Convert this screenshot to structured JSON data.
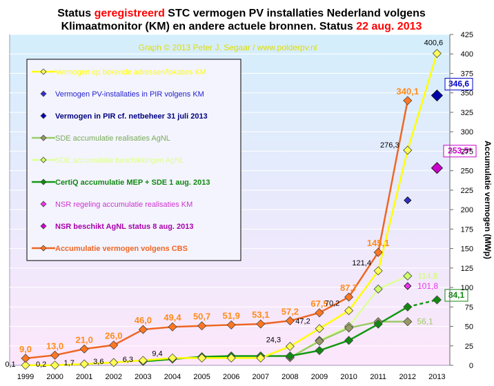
{
  "title": {
    "part1": "Status ",
    "part2": "geregistreerd",
    "part3": " STC vermogen PV installaties  Nederland volgens",
    "line2a": "Klimaatmonitor (KM) en andere actuele bronnen. Status ",
    "line2b": "22 aug. 2013"
  },
  "credit": "Graph  © 2013 Peter J. Segaar / www.polderpv.nl",
  "chart_data": {
    "type": "line",
    "ylabel": "Accumulatie vermogen (MWp)",
    "ylim": [
      0,
      425
    ],
    "yticks": [
      0,
      25,
      50,
      75,
      100,
      125,
      150,
      175,
      200,
      225,
      250,
      275,
      300,
      325,
      350,
      375,
      400,
      425
    ],
    "categories": [
      "1999",
      "2000",
      "2001",
      "2002",
      "2003",
      "2004",
      "2005",
      "2006",
      "2007",
      "2008",
      "2009",
      "2010",
      "2011",
      "2012",
      "2013"
    ],
    "series": [
      {
        "name": "Vermogen op bekende adressen/lokaties KM",
        "color": "#ffff00",
        "marker": "#ffff55",
        "values": [
          0.1,
          0.2,
          1.7,
          3.6,
          6.3,
          9.4,
          9.4,
          9.4,
          9.4,
          24.3,
          47.2,
          70.2,
          121.4,
          276.3,
          400.6
        ]
      },
      {
        "name": "Vermogen PV-installaties in PIR volgens KM",
        "color": "#2222cc",
        "marker": "#3030cc",
        "values": [
          null,
          null,
          null,
          null,
          null,
          null,
          null,
          null,
          null,
          null,
          null,
          null,
          null,
          212,
          null
        ]
      },
      {
        "name": "Vermogen in PIR cf. netbeheer 31 juli 2013",
        "color": "#000080",
        "marker": "#0000aa",
        "values": [
          null,
          null,
          null,
          null,
          null,
          null,
          null,
          null,
          null,
          null,
          null,
          null,
          null,
          null,
          346.6
        ]
      },
      {
        "name": "SDE accumulatie realisaties AgNL",
        "color": "#99cc66",
        "marker": "#999966",
        "values": [
          null,
          null,
          null,
          null,
          null,
          null,
          null,
          null,
          null,
          10,
          31,
          48,
          56,
          56.1,
          null
        ]
      },
      {
        "name": "SDE accumulatie beschikkingen AgNL",
        "color": "#ddff99",
        "marker": "#ccff66",
        "values": [
          null,
          null,
          null,
          null,
          null,
          null,
          null,
          null,
          null,
          10,
          32,
          50,
          98,
          114.8,
          null
        ]
      },
      {
        "name": "CertiQ accumulatie MEP + SDE 1 aug. 2013",
        "color": "#119911",
        "marker": "#118811",
        "values": [
          null,
          null,
          null,
          null,
          5,
          8,
          11,
          12,
          12,
          12,
          19,
          32,
          53,
          75,
          84.1
        ]
      },
      {
        "name": "NSR regeling accumulatie realisaties KM",
        "color": "#cc33cc",
        "marker": "#ee33ee",
        "values": [
          null,
          null,
          null,
          null,
          null,
          null,
          null,
          null,
          null,
          null,
          null,
          null,
          null,
          101.8,
          null
        ]
      },
      {
        "name": "NSR beschikt AgNL status 8 aug. 2013",
        "color": "#cc00cc",
        "marker": "#cc00cc",
        "values": [
          null,
          null,
          null,
          null,
          null,
          null,
          null,
          null,
          null,
          null,
          null,
          null,
          null,
          null,
          253.5
        ]
      },
      {
        "name": "Accumulatie vermogen volgens CBS",
        "color": "#ee6622",
        "marker": "#ff7722",
        "values": [
          9.0,
          13.0,
          21.0,
          26.0,
          46.0,
          49.4,
          50.7,
          51.9,
          53.1,
          57.2,
          67.5,
          87.7,
          145.1,
          340.1,
          null
        ]
      }
    ],
    "labels_cbs": [
      "9,0",
      "13,0",
      "21,0",
      "26,0",
      "46,0",
      "49,4",
      "50,7",
      "51,9",
      "53,1",
      "57,2",
      "67,5",
      "87,7",
      "145,1",
      "340,1"
    ],
    "labels_km": [
      "0,1",
      "0,2",
      "1,7",
      "3,6",
      "6,3",
      "9,4",
      "24,3",
      "47,2",
      "70,2",
      "121,4",
      "276,3",
      "400,6"
    ],
    "label_pir_boxed": "346,6",
    "label_nsr_boxed": "253,5*",
    "label_certiq_boxed": "84,1",
    "label_sde_beschik": "114,8",
    "label_sde_real": "56,1",
    "label_nsr_real": "101,8",
    "colors": {
      "background_top": "#d8f0fc",
      "background_bottom": "#fbe8fb",
      "cbs_label": "#ff8c1a",
      "title_red": "#ff0000",
      "credit": "#dddd00"
    }
  }
}
